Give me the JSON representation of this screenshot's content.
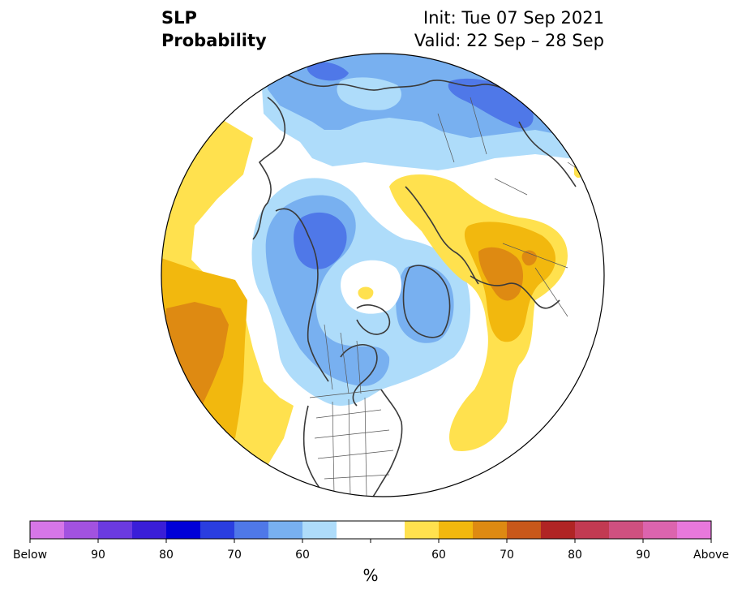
{
  "title": {
    "line1": "SLP",
    "line2": "Probability",
    "init": "Init: Tue 07 Sep 2021",
    "valid": "Valid: 22 Sep – 28 Sep"
  },
  "colorbar": {
    "colors": [
      "#d676e8",
      "#a252e0",
      "#6b3ae0",
      "#3a1ed8",
      "#0000d8",
      "#2a3ee0",
      "#4f78e8",
      "#78b0f0",
      "#aedcfa",
      "#ffffff",
      "#ffffff",
      "#ffe14e",
      "#f2b80e",
      "#de8a12",
      "#c8581a",
      "#b02424",
      "#c23a52",
      "#cf5080",
      "#dc64ae",
      "#e878dc"
    ],
    "labels": [
      "Below",
      "90",
      "80",
      "70",
      "60",
      "60",
      "70",
      "80",
      "90",
      "Above"
    ],
    "unit": "%"
  },
  "map": {
    "projection": "north-polar-stereographic",
    "field": "sea level pressure probability",
    "regions": [
      {
        "category": "below",
        "level": "above 55%",
        "color": "#aedcfa"
      },
      {
        "category": "below",
        "level": "above 60%",
        "color": "#78b0f0"
      },
      {
        "category": "below",
        "level": "above 65%",
        "color": "#4f78e8"
      },
      {
        "category": "above",
        "level": "above 55%",
        "color": "#ffe14e"
      },
      {
        "category": "above",
        "level": "above 60%",
        "color": "#f2b80e"
      },
      {
        "category": "above",
        "level": "above 65%",
        "color": "#de8a12"
      }
    ]
  }
}
